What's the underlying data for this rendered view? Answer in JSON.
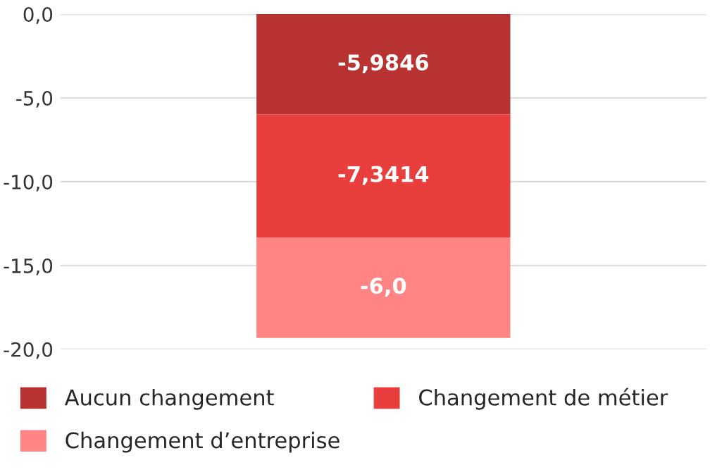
{
  "chart_data": {
    "type": "bar",
    "stacked": true,
    "categories": [
      null
    ],
    "series": [
      {
        "name": "Aucun changement",
        "color": "#b83232",
        "values": [
          -5.9846
        ],
        "value_labels": [
          "-5,9846"
        ]
      },
      {
        "name": "Changement de métier",
        "color": "#e83e3e",
        "values": [
          -7.3414
        ],
        "value_labels": [
          "-7,3414"
        ]
      },
      {
        "name": "Changement d’entreprise",
        "color": "#ff8585",
        "values": [
          -6.0
        ],
        "value_labels": [
          "-6,0"
        ]
      }
    ],
    "ylim": [
      -20,
      0
    ],
    "yticks": [
      {
        "value": 0,
        "label": "0,0"
      },
      {
        "value": -5,
        "label": "-5,0"
      },
      {
        "value": -10,
        "label": "-10,0"
      },
      {
        "value": -15,
        "label": "-15,0"
      },
      {
        "value": -20,
        "label": "-20,0"
      }
    ],
    "grid": "y",
    "legend": "bottom"
  }
}
